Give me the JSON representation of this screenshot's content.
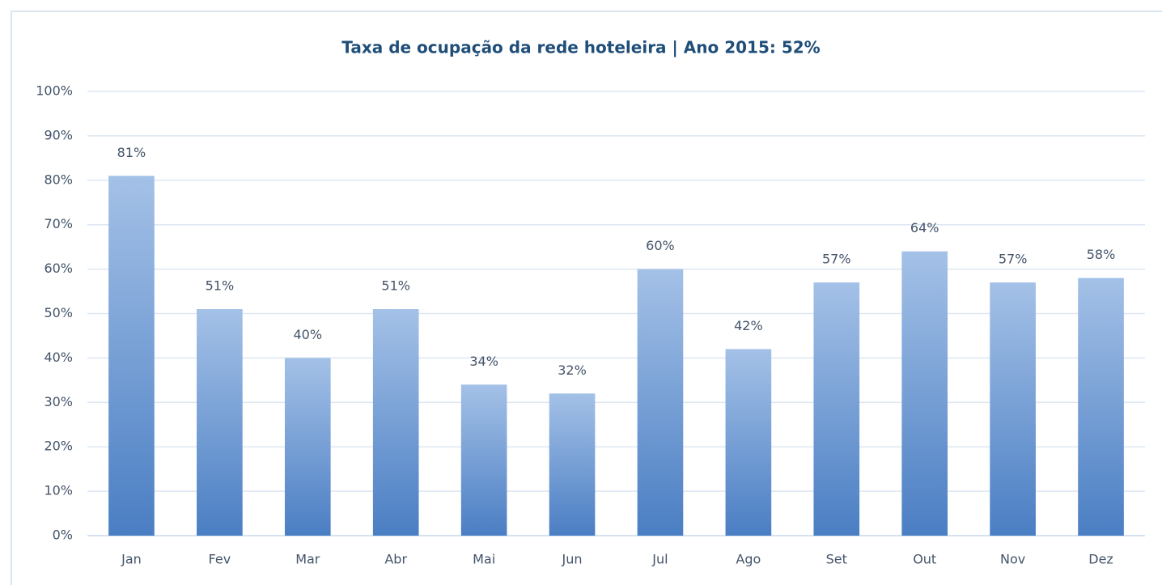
{
  "chart_data": {
    "type": "bar",
    "title": "Taxa de ocupação da rede hoteleira | Ano 2015: 52%",
    "categories": [
      "Jan",
      "Fev",
      "Mar",
      "Abr",
      "Mai",
      "Jun",
      "Jul",
      "Ago",
      "Set",
      "Out",
      "Nov",
      "Dez"
    ],
    "values": [
      81,
      51,
      40,
      51,
      34,
      32,
      60,
      42,
      57,
      64,
      57,
      58
    ],
    "value_labels": [
      "81%",
      "51%",
      "40%",
      "51%",
      "34%",
      "32%",
      "60%",
      "42%",
      "57%",
      "64%",
      "57%",
      "58%"
    ],
    "gradient": [
      "#a4c1e7",
      "#4a7ec3"
    ],
    "ylim": [
      0,
      100
    ],
    "yticks": [
      {
        "value": 0,
        "label": "0%"
      },
      {
        "value": 10,
        "label": "10%"
      },
      {
        "value": 20,
        "label": "20%"
      },
      {
        "value": 30,
        "label": "30%"
      },
      {
        "value": 40,
        "label": "40%"
      },
      {
        "value": 50,
        "label": "50%"
      },
      {
        "value": 60,
        "label": "60%"
      },
      {
        "value": 70,
        "label": "70%"
      },
      {
        "value": 80,
        "label": "80%"
      },
      {
        "value": 90,
        "label": "90%"
      },
      {
        "value": 100,
        "label": "100%"
      }
    ],
    "grid": true
  }
}
